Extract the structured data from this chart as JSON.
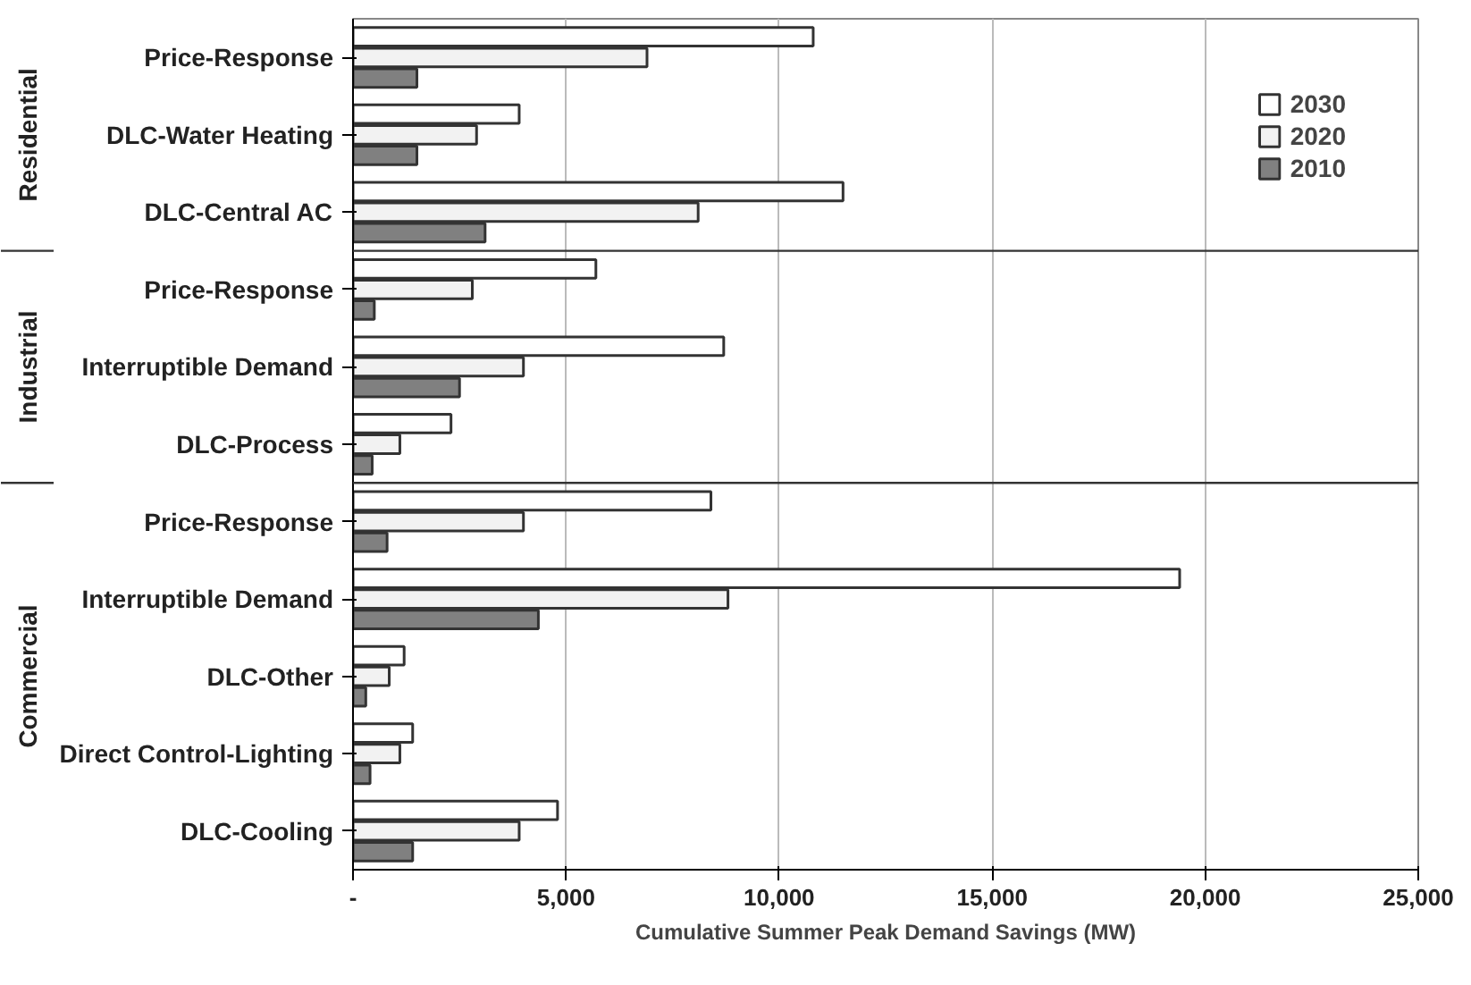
{
  "chart_data": {
    "type": "bar",
    "orientation": "horizontal",
    "xlabel": "Cumulative Summer Peak Demand Savings (MW)",
    "categories": [
      "Price-Response",
      "DLC-Water Heating",
      "DLC-Central AC",
      "Price-Response",
      "Interruptible Demand",
      "DLC-Process",
      "Price-Response",
      "Interruptible Demand",
      "DLC-Other",
      "Direct Control-Lighting",
      "DLC-Cooling"
    ],
    "series": [
      {
        "name": "2030",
        "color": "#ffffff",
        "values": [
          10800,
          3900,
          11500,
          5700,
          8700,
          2300,
          8400,
          19400,
          1200,
          1400,
          4800
        ]
      },
      {
        "name": "2020",
        "color": "#f2f2f2",
        "values": [
          6900,
          2900,
          8100,
          2800,
          4000,
          1100,
          4000,
          8800,
          850,
          1100,
          3900
        ]
      },
      {
        "name": "2010",
        "color": "#808080",
        "values": [
          1500,
          1500,
          3100,
          500,
          2500,
          450,
          800,
          4350,
          300,
          400,
          1400
        ]
      }
    ],
    "xlim": [
      0,
      25000
    ],
    "xticks": [
      {
        "value": 0,
        "label": "-"
      },
      {
        "value": 5000,
        "label": "5,000"
      },
      {
        "value": 10000,
        "label": "10,000"
      },
      {
        "value": 15000,
        "label": "15,000"
      },
      {
        "value": 20000,
        "label": "20,000"
      },
      {
        "value": 25000,
        "label": "25,000"
      }
    ],
    "grid": "x",
    "legend": "top right",
    "annotations": [
      "Residential",
      "Industrial",
      "Commercial"
    ]
  }
}
